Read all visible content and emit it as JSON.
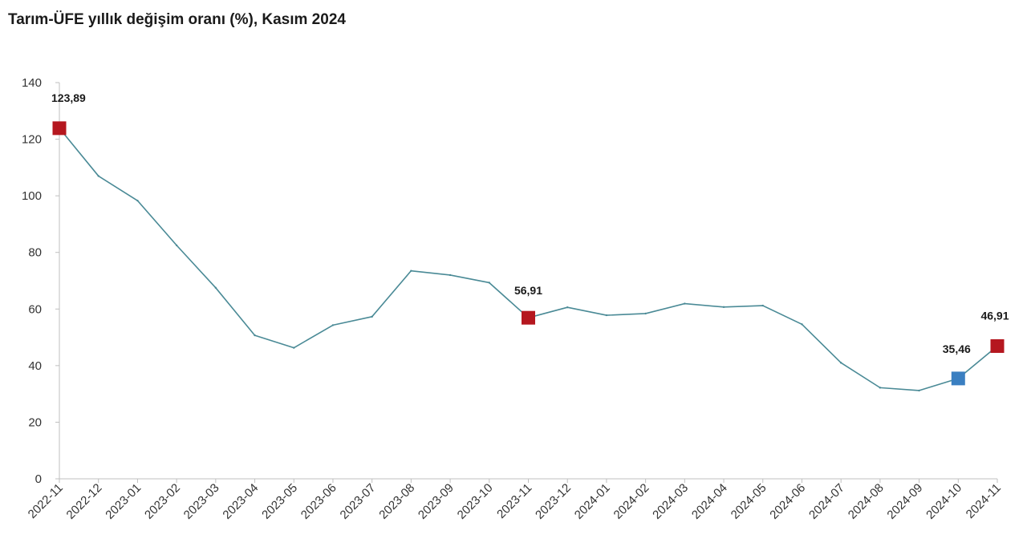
{
  "chart_data": {
    "type": "line",
    "title": "Tarım-ÜFE yıllık değişim oranı (%), Kasım 2024",
    "xlabel": "",
    "ylabel": "",
    "ylim": [
      0,
      140
    ],
    "yticks": [
      0,
      20,
      40,
      60,
      80,
      100,
      120,
      140
    ],
    "grid": false,
    "legend": "none",
    "categories": [
      "2022-11",
      "2022-12",
      "2023-01",
      "2023-02",
      "2023-03",
      "2023-04",
      "2023-05",
      "2023-06",
      "2023-07",
      "2023-08",
      "2023-09",
      "2023-10",
      "2023-11",
      "2023-12",
      "2024-01",
      "2024-02",
      "2024-03",
      "2024-04",
      "2024-05",
      "2024-06",
      "2024-07",
      "2024-08",
      "2024-09",
      "2024-10",
      "2024-11"
    ],
    "series": [
      {
        "values": [
          123.89,
          107.0,
          98.3,
          82.5,
          67.5,
          50.7,
          46.3,
          54.3,
          57.3,
          73.5,
          72.0,
          69.3,
          56.91,
          60.6,
          57.8,
          58.4,
          61.9,
          60.7,
          61.2,
          54.6,
          41.0,
          32.2,
          31.2,
          35.46,
          46.91
        ]
      }
    ],
    "highlighted_points": [
      {
        "category": "2022-11",
        "value": 123.89,
        "label": "123,89",
        "color": "#b5171f"
      },
      {
        "category": "2023-11",
        "value": 56.91,
        "label": "56,91",
        "color": "#b5171f"
      },
      {
        "category": "2024-10",
        "value": 35.46,
        "label": "35,46",
        "color": "#3a7fc1"
      },
      {
        "category": "2024-11",
        "value": 46.91,
        "label": "46,91",
        "color": "#b5171f"
      }
    ],
    "colors": {
      "line": "#4a8a96",
      "axis": "#bfbfbf",
      "highlight_red": "#b5171f",
      "highlight_blue": "#3a7fc1"
    }
  }
}
